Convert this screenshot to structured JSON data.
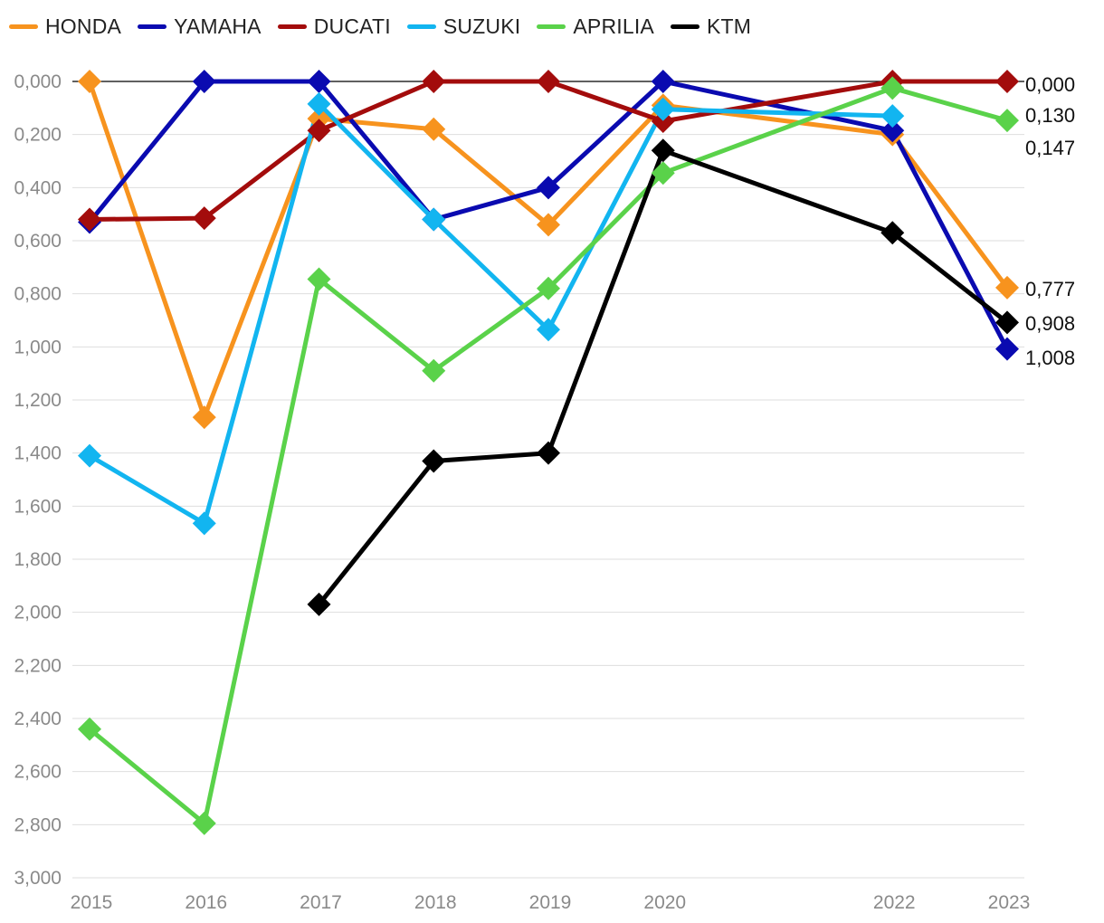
{
  "chart_data": {
    "type": "line",
    "title": "",
    "xlabel": "",
    "ylabel": "",
    "x": [
      2015,
      2016,
      2017,
      2018,
      2019,
      2020,
      2022,
      2023
    ],
    "x_tick_labels": [
      "2015",
      "2016",
      "2017",
      "2018",
      "2019",
      "2020",
      "2022",
      "2023"
    ],
    "ylim": [
      0,
      3
    ],
    "y_axis_inverted": true,
    "y_ticks": [
      0,
      0.2,
      0.4,
      0.6,
      0.8,
      1.0,
      1.2,
      1.4,
      1.6,
      1.8,
      2.0,
      2.2,
      2.4,
      2.6,
      2.8,
      3.0
    ],
    "y_tick_labels": [
      "0,000",
      "0,200",
      "0,400",
      "0,600",
      "0,800",
      "1,000",
      "1,200",
      "1,400",
      "1,600",
      "1,800",
      "2,000",
      "2,200",
      "2,400",
      "2,600",
      "2,800",
      "3,000"
    ],
    "grid": true,
    "legend_position": "top-left",
    "marker": "diamond",
    "series": [
      {
        "name": "HONDA",
        "color": "#F7931E",
        "values": [
          0.0,
          1.265,
          0.14,
          0.18,
          0.54,
          0.09,
          0.2,
          0.777
        ]
      },
      {
        "name": "YAMAHA",
        "color": "#0A0AB0",
        "values": [
          0.53,
          0.0,
          0.0,
          0.52,
          0.4,
          0.0,
          0.185,
          1.008
        ]
      },
      {
        "name": "DUCATI",
        "color": "#A30C0C",
        "values": [
          0.52,
          0.515,
          0.185,
          0.0,
          0.0,
          0.15,
          0.0,
          0.0
        ]
      },
      {
        "name": "SUZUKI",
        "color": "#12B5F0",
        "values": [
          1.41,
          1.665,
          0.085,
          0.52,
          0.935,
          0.105,
          0.13,
          null
        ]
      },
      {
        "name": "APRILIA",
        "color": "#5AD24A",
        "values": [
          2.44,
          2.795,
          0.745,
          1.09,
          0.78,
          0.345,
          0.025,
          0.147
        ]
      },
      {
        "name": "KTM",
        "color": "#000000",
        "values": [
          null,
          null,
          1.97,
          1.43,
          1.4,
          0.26,
          0.57,
          0.908
        ]
      }
    ],
    "end_labels": [
      "0,000",
      "0,130",
      "0,147",
      "0,777",
      "0,908",
      "1,008"
    ]
  }
}
